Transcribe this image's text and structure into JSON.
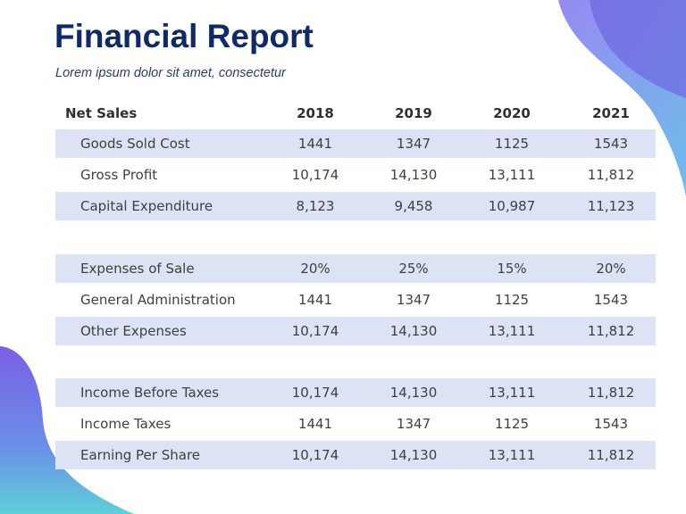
{
  "header": {
    "title": "Financial Report",
    "subtitle": "Lorem ipsum dolor sit amet, consectetur"
  },
  "table": {
    "columns": [
      "Net Sales",
      "2018",
      "2019",
      "2020",
      "2021"
    ],
    "groups": [
      {
        "rows": [
          [
            "Goods Sold Cost",
            "1441",
            "1347",
            "1125",
            "1543"
          ],
          [
            "Gross Profit",
            "10,174",
            "14,130",
            "13,111",
            "11,812"
          ],
          [
            "Capital Expenditure",
            "8,123",
            "9,458",
            "10,987",
            "11,123"
          ]
        ]
      },
      {
        "rows": [
          [
            "Expenses of Sale",
            "20%",
            "25%",
            "15%",
            "20%"
          ],
          [
            "General Administration",
            "1441",
            "1347",
            "1125",
            "1543"
          ],
          [
            "Other Expenses",
            "10,174",
            "14,130",
            "13,111",
            "11,812"
          ]
        ]
      },
      {
        "rows": [
          [
            "Income Before Taxes",
            "10,174",
            "14,130",
            "13,111",
            "11,812"
          ],
          [
            "Income Taxes",
            "1441",
            "1347",
            "1125",
            "1543"
          ],
          [
            "Earning Per Share",
            "10,174",
            "14,130",
            "13,111",
            "11,812"
          ]
        ]
      }
    ]
  }
}
